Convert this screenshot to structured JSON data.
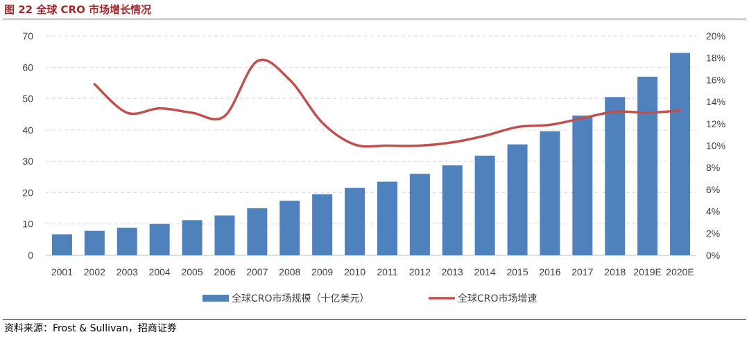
{
  "figure": {
    "title": "图 22 全球 CRO 市场增长情况",
    "source": "资料来源：Frost & Sullivan，招商证券"
  },
  "colors": {
    "accent": "#a6262e",
    "bar": "#4f81bd",
    "line": "#c0504d",
    "grid": "#d9d9d9",
    "text": "#404040"
  },
  "chart_data": {
    "type": "bar",
    "title": "",
    "categories": [
      "2001",
      "2002",
      "2003",
      "2004",
      "2005",
      "2006",
      "2007",
      "2008",
      "2009",
      "2010",
      "2011",
      "2012",
      "2013",
      "2014",
      "2015",
      "2016",
      "2017",
      "2018",
      "2019E",
      "2020E"
    ],
    "series": [
      {
        "name": "全球CRO市场规模（十亿美元）",
        "type": "bar",
        "axis": "left",
        "values": [
          6.7,
          7.8,
          8.8,
          10.0,
          11.2,
          12.7,
          15.0,
          17.4,
          19.5,
          21.5,
          23.5,
          26.0,
          28.7,
          31.8,
          35.4,
          39.6,
          44.6,
          50.5,
          57.0,
          64.6
        ]
      },
      {
        "name": "全球CRO市场增速",
        "type": "line",
        "axis": "right",
        "values": [
          null,
          0.156,
          0.13,
          0.134,
          0.13,
          0.127,
          0.177,
          0.16,
          0.121,
          0.101,
          0.1,
          0.1,
          0.103,
          0.109,
          0.117,
          0.119,
          0.125,
          0.131,
          0.13,
          0.132
        ]
      }
    ],
    "y_left": {
      "min": 0,
      "max": 70,
      "ticks": [
        "0",
        "10",
        "20",
        "30",
        "40",
        "50",
        "60",
        "70"
      ]
    },
    "y_right": {
      "min": 0,
      "max": 0.2,
      "ticks": [
        "0%",
        "2%",
        "4%",
        "6%",
        "8%",
        "10%",
        "12%",
        "14%",
        "16%",
        "18%",
        "20%"
      ]
    },
    "grid": true,
    "legend_position": "bottom"
  }
}
